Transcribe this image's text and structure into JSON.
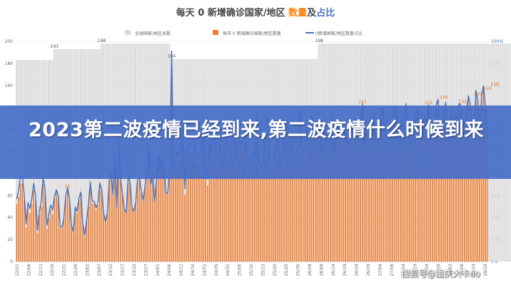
{
  "chart_data": {
    "type": "bar",
    "title_segments": [
      {
        "text": "每天 0 新增确诊国家/地区 ",
        "color": "#444444"
      },
      {
        "text": "数量",
        "color": "#ff7f0e"
      },
      {
        "text": "及",
        "color": "#444444"
      },
      {
        "text": "占比",
        "color": "#4472c4"
      }
    ],
    "legend": [
      "全球国家/地区总数",
      "每天 0 新增确诊国家/地区数量",
      "0新增国家/地区数量占比"
    ],
    "legend_colors": [
      "#d9d9d9",
      "#ed7d31",
      "#4472c4"
    ],
    "y_left": {
      "min": 0,
      "max": 200,
      "ticks": [
        0,
        20,
        40,
        60,
        80,
        100,
        120,
        140,
        160,
        180,
        200
      ]
    },
    "y_right": {
      "min": 0,
      "max": 100,
      "unit": "%",
      "ticks": [
        0,
        10,
        20,
        30,
        40,
        50,
        60,
        70,
        80,
        90,
        100
      ]
    },
    "x_tick_labels": [
      "22/01",
      "22/06",
      "22/11",
      "22/16",
      "22/21",
      "22/26",
      "23/02",
      "23/07",
      "23/12",
      "23/17",
      "23/22",
      "23/27",
      "24/01",
      "24/06",
      "24/11",
      "24/16",
      "24/21",
      "24/26",
      "24/31",
      "25/05",
      "25/10",
      "25/15",
      "25/20",
      "25/25",
      "25/30",
      "26/04",
      "26/09",
      "26/14",
      "26/19",
      "26/24",
      "26/29",
      "27/04",
      "27/09",
      "27/14",
      "27/19",
      "27/24",
      "27/29",
      "28/03",
      "28/08",
      "28/13",
      "28/18"
    ],
    "total_labels": [
      {
        "index": 20,
        "value": 193
      },
      {
        "index": 45,
        "value": 198
      },
      {
        "index": 82,
        "value": 184
      },
      {
        "index": 160,
        "value": 198
      }
    ],
    "daily_labels": [
      {
        "index": 27,
        "value": 65
      },
      {
        "index": 50,
        "value": 82
      },
      {
        "index": 52,
        "value": 95
      },
      {
        "index": 54,
        "value": 108
      },
      {
        "index": 183,
        "value": 142
      },
      {
        "index": 218,
        "value": 141
      },
      {
        "index": 226,
        "value": 146
      },
      {
        "index": 236,
        "value": 142
      },
      {
        "index": 244,
        "value": 149
      },
      {
        "index": 249,
        "value": 154
      },
      {
        "index": 253,
        "value": 158
      }
    ],
    "totals": [
      183,
      183,
      183,
      183,
      183,
      183,
      183,
      183,
      183,
      183,
      183,
      183,
      183,
      183,
      183,
      183,
      183,
      183,
      183,
      183,
      193,
      193,
      193,
      193,
      193,
      193,
      193,
      193,
      193,
      193,
      193,
      193,
      193,
      193,
      193,
      193,
      193,
      193,
      193,
      193,
      193,
      193,
      193,
      193,
      193,
      198,
      198,
      198,
      198,
      198,
      198,
      198,
      198,
      198,
      198,
      198,
      198,
      198,
      198,
      198,
      198,
      198,
      198,
      198,
      198,
      198,
      198,
      198,
      198,
      198,
      198,
      198,
      198,
      198,
      198,
      198,
      198,
      198,
      198,
      198,
      198,
      198,
      184,
      184,
      184,
      184,
      184,
      184,
      184,
      184,
      184,
      184,
      184,
      184,
      184,
      184,
      184,
      184,
      184,
      184,
      184,
      184,
      184,
      184,
      184,
      184,
      184,
      184,
      184,
      184,
      184,
      184,
      184,
      184,
      184,
      184,
      184,
      184,
      184,
      184,
      184,
      184,
      184,
      184,
      184,
      184,
      184,
      184,
      184,
      184,
      184,
      184,
      184,
      184,
      184,
      184,
      184,
      184,
      184,
      184,
      184,
      184,
      184,
      184,
      184,
      184,
      184,
      184,
      184,
      184,
      184,
      184,
      184,
      184,
      184,
      184,
      184,
      184,
      184,
      184,
      198,
      198,
      198,
      198,
      198,
      198,
      198,
      198,
      198,
      198,
      198,
      198,
      198,
      198,
      198,
      198,
      198,
      198,
      198,
      198,
      198,
      198,
      198,
      198,
      198,
      198,
      198,
      198,
      198,
      198,
      198,
      198,
      198,
      198,
      198,
      198,
      198,
      198,
      198,
      198,
      198,
      198,
      198,
      198,
      198,
      198,
      198,
      198,
      198,
      198,
      198,
      198,
      198,
      198,
      198,
      198,
      198,
      198,
      198,
      198,
      198,
      198,
      198,
      198,
      198,
      198,
      198,
      198,
      198,
      198,
      198,
      198,
      198,
      198,
      198,
      198,
      198,
      198,
      198,
      198,
      198,
      198,
      198,
      198,
      198,
      198,
      198,
      198,
      198,
      198,
      198,
      198,
      198,
      198,
      198,
      198,
      198,
      198,
      198,
      198,
      198,
      198,
      198,
      198,
      198,
      198,
      198,
      198,
      198,
      198,
      198,
      198,
      198
    ],
    "daily": [
      52,
      59,
      71,
      71,
      56,
      31,
      49,
      44,
      52,
      65,
      55,
      26,
      42,
      50,
      70,
      60,
      30,
      39,
      47,
      43,
      57,
      63,
      58,
      31,
      30,
      38,
      58,
      65,
      54,
      32,
      26,
      48,
      44,
      56,
      61,
      33,
      23,
      36,
      50,
      70,
      53,
      53,
      47,
      51,
      69,
      65,
      44,
      36,
      44,
      73,
      82,
      60,
      95,
      48,
      108,
      74,
      61,
      47,
      44,
      76,
      72,
      49,
      45,
      53,
      75,
      76,
      63,
      55,
      69,
      83,
      104,
      69,
      79,
      54,
      75,
      95,
      83,
      91,
      86,
      61,
      62,
      86,
      176,
      77,
      85,
      92,
      88,
      95,
      111,
      61,
      93,
      99,
      98,
      96,
      98,
      89,
      88,
      88,
      98,
      107,
      81,
      69,
      105,
      89,
      102,
      105,
      87,
      86,
      107,
      114,
      113,
      104,
      94,
      97,
      102,
      120,
      85,
      96,
      101,
      98,
      102,
      119,
      80,
      83,
      89,
      91,
      86,
      124,
      85,
      78,
      81,
      90,
      112,
      122,
      85,
      85,
      85,
      94,
      111,
      110,
      103,
      102,
      85,
      117,
      109,
      87,
      104,
      99,
      103,
      113,
      128,
      87,
      94,
      97,
      112,
      114,
      123,
      113,
      99,
      114,
      123,
      113,
      95,
      118,
      112,
      118,
      115,
      131,
      98,
      118,
      125,
      114,
      109,
      122,
      116,
      103,
      114,
      129,
      115,
      129,
      117,
      119,
      126,
      142,
      100,
      127,
      121,
      129,
      125,
      133,
      101,
      110,
      118,
      138,
      137,
      114,
      104,
      116,
      118,
      115,
      140,
      136,
      108,
      105,
      129,
      128,
      142,
      128,
      103,
      111,
      120,
      134,
      137,
      124,
      111,
      122,
      131,
      122,
      141,
      120,
      121,
      118,
      141,
      146,
      114,
      117,
      136,
      143,
      123,
      125,
      136,
      123,
      133,
      127,
      142,
      141,
      122,
      126,
      134,
      149,
      142,
      121,
      117,
      154,
      145,
      108,
      149,
      158,
      140,
      123
    ]
  },
  "overlay": {
    "banner_title": "2023第二波疫情已经到来,第二波疫情什么时候到来",
    "watermark": "搜狐号@重庆大卡ao"
  }
}
